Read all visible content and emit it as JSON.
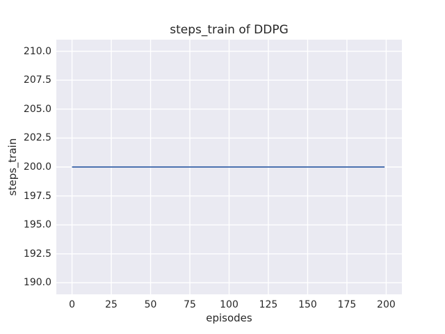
{
  "figure": {
    "background": "#ffffff",
    "plot_background": "#eaeaf2",
    "grid_color": "#ffffff",
    "text_color": "#262626"
  },
  "chart_data": {
    "type": "line",
    "title": "steps_train of DDPG",
    "xlabel": "episodes",
    "ylabel": "steps_train",
    "xlim": [
      -10,
      210
    ],
    "ylim": [
      189,
      211
    ],
    "grid": true,
    "legend": null,
    "xticks": {
      "values": [
        0,
        25,
        50,
        75,
        100,
        125,
        150,
        175,
        200
      ],
      "labels": [
        "0",
        "25",
        "50",
        "75",
        "100",
        "125",
        "150",
        "175",
        "200"
      ]
    },
    "yticks": {
      "values": [
        190.0,
        192.5,
        195.0,
        197.5,
        200.0,
        202.5,
        205.0,
        207.5,
        210.0
      ],
      "labels": [
        "190.0",
        "192.5",
        "195.0",
        "197.5",
        "200.0",
        "202.5",
        "205.0",
        "207.5",
        "210.0"
      ]
    },
    "series": [
      {
        "name": "steps_train",
        "color": "#4c72b0",
        "line_width": 2,
        "x": [
          0,
          199
        ],
        "y": [
          200,
          200
        ]
      }
    ]
  }
}
